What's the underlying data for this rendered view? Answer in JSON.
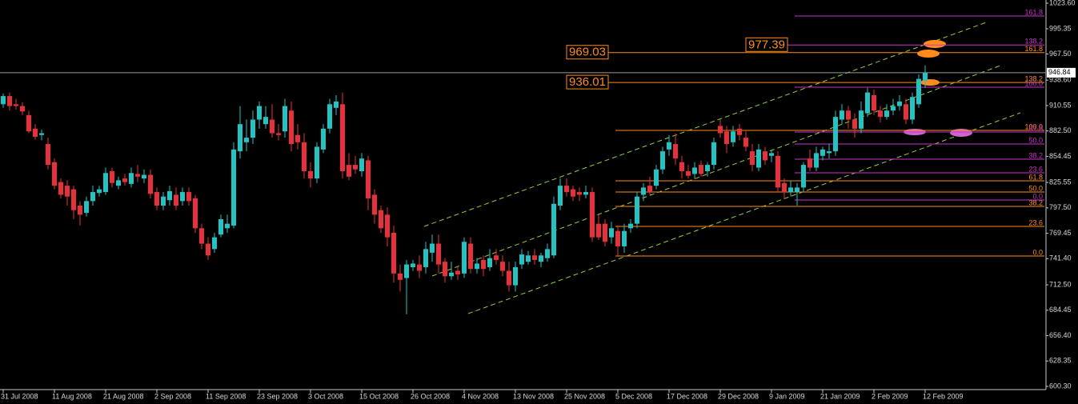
{
  "chart_data": {
    "type": "candlestick",
    "up_color": "#22c3c3",
    "down_color": "#e8303a",
    "categories": [
      "31 Jul 2008",
      null,
      null,
      null,
      null,
      null,
      null,
      null,
      "11 Aug 2008",
      null,
      null,
      null,
      null,
      null,
      null,
      null,
      "21 Aug 2008",
      null,
      null,
      null,
      null,
      null,
      null,
      null,
      "2 Sep 2008",
      null,
      null,
      null,
      null,
      null,
      null,
      null,
      "11 Sep 2008",
      null,
      null,
      null,
      null,
      null,
      null,
      null,
      "23 Sep 2008",
      null,
      null,
      null,
      null,
      null,
      null,
      null,
      "3 Oct 2008",
      null,
      null,
      null,
      null,
      null,
      null,
      null,
      "15 Oct 2008",
      null,
      null,
      null,
      null,
      null,
      null,
      null,
      "26 Oct 2008",
      null,
      null,
      null,
      null,
      null,
      null,
      null,
      "4 Nov 2008",
      null,
      null,
      null,
      null,
      null,
      null,
      null,
      "13 Nov 2008",
      null,
      null,
      null,
      null,
      null,
      null,
      null,
      "25 Nov 2008",
      null,
      null,
      null,
      null,
      null,
      null,
      null,
      "5 Dec 2008",
      null,
      null,
      null,
      null,
      null,
      null,
      null,
      "17 Dec 2008",
      null,
      null,
      null,
      null,
      null,
      null,
      null,
      "29 Dec 2008",
      null,
      null,
      null,
      null,
      null,
      null,
      null,
      "9 Jan 2009",
      null,
      null,
      null,
      null,
      null,
      null,
      null,
      "21 Jan 2009",
      null,
      null,
      null,
      null,
      null,
      null,
      null,
      "2 Feb 2009",
      null,
      null,
      null,
      null,
      null,
      null,
      null,
      "12 Feb 2009"
    ],
    "open": [
      912,
      921,
      912,
      910,
      900,
      885,
      878,
      868,
      848,
      826,
      822,
      818,
      800,
      792,
      805,
      814,
      815,
      838,
      822,
      830,
      824,
      835,
      830,
      834,
      815,
      800,
      806,
      812,
      805,
      815,
      808,
      775,
      758,
      752,
      768,
      775,
      778,
      860,
      870,
      875,
      895,
      890,
      895,
      880,
      882,
      905,
      878,
      870,
      838,
      830,
      862,
      885,
      908,
      912,
      845,
      845,
      838,
      850,
      812,
      795,
      790,
      770,
      725,
      720,
      732,
      735,
      732,
      748,
      758,
      738,
      722,
      728,
      725,
      758,
      730,
      740,
      732,
      745,
      738,
      728,
      712,
      735,
      738,
      745,
      738,
      742,
      745,
      800,
      822,
      818,
      815,
      812,
      815,
      780,
      780,
      765,
      772,
      755,
      775,
      780,
      812,
      822,
      822,
      840,
      862,
      868,
      848,
      838,
      835,
      845,
      838,
      845,
      888,
      882,
      870,
      885,
      875,
      860,
      842,
      860,
      855,
      855,
      825,
      815,
      815,
      820,
      852,
      842,
      855,
      858,
      860,
      895,
      905,
      895,
      885,
      902,
      922,
      905,
      898,
      905,
      910,
      912,
      895,
      912,
      938
    ],
    "high": [
      924,
      925,
      918,
      914,
      905,
      890,
      884,
      875,
      852,
      830,
      828,
      822,
      805,
      810,
      822,
      822,
      842,
      842,
      832,
      835,
      842,
      845,
      840,
      840,
      820,
      815,
      822,
      820,
      820,
      820,
      812,
      780,
      765,
      770,
      790,
      790,
      870,
      910,
      895,
      905,
      915,
      910,
      912,
      890,
      918,
      915,
      890,
      880,
      848,
      870,
      890,
      918,
      922,
      925,
      858,
      855,
      858,
      855,
      818,
      800,
      798,
      778,
      735,
      740,
      740,
      745,
      760,
      768,
      768,
      742,
      738,
      732,
      765,
      765,
      742,
      745,
      752,
      752,
      745,
      738,
      738,
      752,
      750,
      752,
      748,
      758,
      810,
      830,
      830,
      822,
      820,
      822,
      820,
      790,
      785,
      782,
      778,
      780,
      785,
      815,
      825,
      832,
      845,
      865,
      878,
      880,
      855,
      845,
      848,
      850,
      848,
      875,
      895,
      888,
      888,
      890,
      882,
      868,
      868,
      865,
      862,
      860,
      830,
      828,
      825,
      848,
      862,
      865,
      865,
      868,
      905,
      912,
      910,
      902,
      915,
      930,
      928,
      910,
      912,
      918,
      922,
      918,
      925,
      945,
      955
    ],
    "low": [
      908,
      905,
      906,
      900,
      880,
      873,
      872,
      840,
      818,
      808,
      800,
      785,
      778,
      788,
      800,
      810,
      812,
      820,
      818,
      822,
      820,
      826,
      825,
      808,
      795,
      795,
      800,
      795,
      800,
      800,
      770,
      752,
      740,
      748,
      765,
      770,
      775,
      852,
      860,
      868,
      885,
      885,
      875,
      872,
      875,
      860,
      862,
      830,
      820,
      825,
      858,
      880,
      900,
      830,
      828,
      835,
      832,
      795,
      780,
      770,
      755,
      715,
      705,
      680,
      728,
      720,
      725,
      738,
      725,
      715,
      718,
      718,
      720,
      725,
      725,
      722,
      728,
      735,
      722,
      705,
      705,
      730,
      735,
      735,
      732,
      738,
      742,
      795,
      810,
      805,
      805,
      808,
      760,
      762,
      755,
      758,
      745,
      748,
      770,
      775,
      805,
      812,
      818,
      835,
      855,
      845,
      830,
      830,
      830,
      832,
      832,
      840,
      875,
      858,
      865,
      872,
      860,
      838,
      838,
      845,
      848,
      815,
      808,
      810,
      800,
      815,
      838,
      838,
      850,
      852,
      855,
      890,
      885,
      875,
      880,
      898,
      900,
      892,
      895,
      900,
      905,
      890,
      890,
      908,
      930
    ],
    "close": [
      921,
      910,
      910,
      904,
      882,
      876,
      880,
      845,
      822,
      812,
      810,
      795,
      790,
      805,
      815,
      818,
      836,
      825,
      828,
      826,
      836,
      832,
      834,
      813,
      800,
      810,
      816,
      800,
      815,
      805,
      775,
      758,
      745,
      765,
      785,
      780,
      862,
      890,
      875,
      895,
      910,
      898,
      880,
      878,
      910,
      868,
      870,
      838,
      830,
      865,
      885,
      912,
      915,
      838,
      832,
      840,
      852,
      808,
      790,
      775,
      765,
      725,
      718,
      735,
      736,
      728,
      752,
      758,
      735,
      722,
      726,
      724,
      760,
      730,
      736,
      730,
      742,
      740,
      728,
      712,
      732,
      746,
      745,
      740,
      745,
      752,
      802,
      822,
      815,
      810,
      812,
      815,
      765,
      765,
      760,
      775,
      755,
      772,
      780,
      810,
      820,
      815,
      840,
      860,
      870,
      852,
      838,
      833,
      842,
      835,
      845,
      870,
      880,
      868,
      882,
      878,
      865,
      845,
      862,
      850,
      858,
      820,
      815,
      820,
      820,
      845,
      842,
      858,
      862,
      860,
      898,
      905,
      895,
      885,
      905,
      925,
      905,
      898,
      905,
      910,
      915,
      895,
      920,
      940,
      946.84
    ],
    "ylim": [
      600.3,
      1023.6
    ],
    "yticks": [
      {
        "value": 1023.6,
        "label": "1023.60"
      },
      995.35,
      {
        "value": 967.5,
        "label": "967.50"
      },
      {
        "value": 938.6,
        "label": "938.60"
      },
      910.55,
      {
        "value": 882.5,
        "label": "882.50"
      },
      854.45,
      825.55,
      {
        "value": 797.5,
        "label": "797.50"
      },
      769.45,
      {
        "value": 741.4,
        "label": "741.40"
      },
      {
        "value": 712.5,
        "label": "712.50"
      },
      684.45,
      {
        "value": 656.4,
        "label": "656.40"
      },
      628.35,
      {
        "value": 600.3,
        "label": "600.30"
      }
    ],
    "last_price": 946.84,
    "fib_sets": [
      {
        "color": "#ff8c1a",
        "levels": [
          {
            "label": "161.8",
            "value": 969.03,
            "boxed": true
          },
          {
            "label": "138.2",
            "value": 936.01,
            "boxed": true
          },
          {
            "label": "100.0",
            "value": 883.1
          },
          {
            "label": "61.8",
            "value": 827.4
          },
          {
            "label": "50.0",
            "value": 815.0
          },
          {
            "label": "38.2",
            "value": 799.1
          },
          {
            "label": "23.6",
            "value": 777.0
          },
          {
            "label": "0.0",
            "value": 744.3
          }
        ]
      },
      {
        "color": "#cc33cc",
        "levels": [
          {
            "label": "161.8",
            "value": 1009.5
          },
          {
            "label": "138.2",
            "value": 977.39,
            "boxed": true
          },
          {
            "label": "100.0",
            "value": 930.8
          },
          {
            "label": "61.8",
            "value": 881.3
          },
          {
            "label": "50.0",
            "value": 868.1
          },
          {
            "label": "38.2",
            "value": 851.3
          },
          {
            "label": "23.6",
            "value": 836.3
          },
          {
            "label": "0.0",
            "value": 806.2
          }
        ]
      }
    ]
  }
}
